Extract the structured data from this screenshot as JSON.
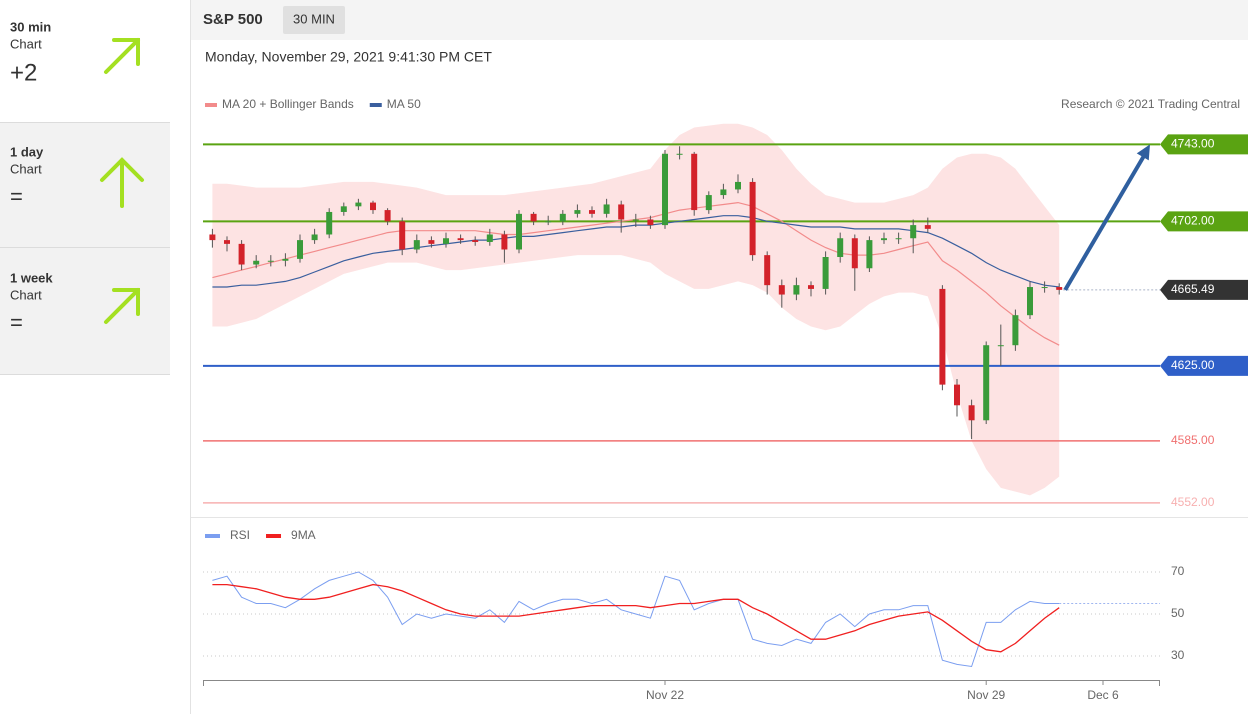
{
  "sidebar": [
    {
      "period": "30 min",
      "label": "Chart",
      "score": "+2"
    },
    {
      "period": "1 day",
      "label": "Chart",
      "score": "="
    },
    {
      "period": "1 week",
      "label": "Chart",
      "score": "="
    }
  ],
  "header": {
    "symbol": "S&P 500",
    "interval": "30 MIN",
    "datetime": "Monday, November 29, 2021 9:41:30 PM CET",
    "source": "Research © 2021 Trading Central"
  },
  "chart_data": [
    {
      "type": "candlestick",
      "ylim": [
        4545,
        4756
      ],
      "up_color": "#3a9b3a",
      "down_color": "#d3222a",
      "open": [
        4695,
        4692,
        4690,
        4679,
        4681,
        4681,
        4682,
        4692,
        4695,
        4707,
        4710,
        4712,
        4708,
        4702,
        4687,
        4692,
        4690,
        4693,
        4692,
        4691,
        4695,
        4687,
        4706,
        4702,
        4702,
        4706,
        4708,
        4706,
        4711,
        4703,
        4703,
        4700,
        4738,
        4738,
        4708,
        4716,
        4719,
        4723,
        4684,
        4668,
        4663,
        4668,
        4666,
        4683,
        4693,
        4677,
        4692,
        4693,
        4693,
        4700,
        4666,
        4615,
        4604,
        4596,
        4636,
        4636,
        4652,
        4667,
        4667
      ],
      "high": [
        4698,
        4694,
        4692,
        4684,
        4684,
        4685,
        4695,
        4698,
        4709,
        4712,
        4714,
        4713,
        4709,
        4704,
        4695,
        4694,
        4696,
        4695,
        4694,
        4698,
        4697,
        4708,
        4707,
        4705,
        4708,
        4711,
        4710,
        4714,
        4713,
        4706,
        4705,
        4740,
        4742,
        4739,
        4718,
        4722,
        4727,
        4725,
        4686,
        4671,
        4672,
        4670,
        4686,
        4696,
        4695,
        4694,
        4696,
        4696,
        4703,
        4704,
        4668,
        4618,
        4607,
        4638,
        4647,
        4655,
        4670,
        4670,
        4669
      ],
      "low": [
        4688,
        4686,
        4676,
        4677,
        4678,
        4678,
        4680,
        4690,
        4693,
        4705,
        4708,
        4706,
        4700,
        4684,
        4685,
        4688,
        4688,
        4690,
        4689,
        4689,
        4680,
        4685,
        4700,
        4700,
        4700,
        4704,
        4704,
        4704,
        4696,
        4699,
        4698,
        4698,
        4735,
        4705,
        4706,
        4714,
        4717,
        4681,
        4663,
        4656,
        4660,
        4662,
        4663,
        4680,
        4665,
        4675,
        4690,
        4690,
        4685,
        4696,
        4612,
        4598,
        4586,
        4594,
        4625,
        4633,
        4650,
        4664,
        4663
      ],
      "close": [
        4692,
        4690,
        4679,
        4681,
        4681,
        4682,
        4692,
        4695,
        4707,
        4710,
        4712,
        4708,
        4702,
        4687,
        4692,
        4690,
        4693,
        4692,
        4691,
        4695,
        4687,
        4706,
        4702,
        4702,
        4706,
        4708,
        4706,
        4711,
        4703,
        4703,
        4700,
        4738,
        4738,
        4708,
        4716,
        4719,
        4723,
        4684,
        4668,
        4663,
        4668,
        4666,
        4683,
        4693,
        4677,
        4692,
        4693,
        4693,
        4700,
        4698,
        4615,
        4604,
        4596,
        4636,
        4636,
        4652,
        4667,
        4667,
        4665.49
      ],
      "series": [
        {
          "name": "MA 20 + Bollinger Bands",
          "color": "#f28b8b",
          "band_color": "#fde3e3",
          "values": [
            4672,
            4674,
            4676,
            4678,
            4680,
            4682,
            4684,
            4686,
            4688,
            4690,
            4692,
            4694,
            4696,
            4697,
            4697,
            4697,
            4697,
            4697,
            4697,
            4696,
            4695,
            4695,
            4696,
            4697,
            4698,
            4699,
            4700,
            4701,
            4702,
            4703,
            4704,
            4706,
            4708,
            4709,
            4710,
            4711,
            4712,
            4710,
            4706,
            4702,
            4697,
            4692,
            4688,
            4685,
            4684,
            4684,
            4685,
            4687,
            4689,
            4691,
            4681,
            4676,
            4670,
            4664,
            4657,
            4651,
            4645,
            4640,
            4636
          ],
          "upper": [
            4722,
            4722,
            4721,
            4720,
            4720,
            4720,
            4720,
            4721,
            4722,
            4723,
            4723,
            4723,
            4722,
            4721,
            4720,
            4718,
            4716,
            4716,
            4716,
            4716,
            4716,
            4717,
            4718,
            4719,
            4720,
            4721,
            4722,
            4724,
            4726,
            4728,
            4730,
            4740,
            4748,
            4752,
            4753,
            4754,
            4754,
            4752,
            4748,
            4740,
            4730,
            4722,
            4716,
            4714,
            4712,
            4712,
            4712,
            4714,
            4716,
            4720,
            4730,
            4736,
            4738,
            4738,
            4736,
            4730,
            4720,
            4710,
            4700
          ],
          "lower": [
            4646,
            4646,
            4648,
            4650,
            4654,
            4658,
            4662,
            4666,
            4670,
            4674,
            4676,
            4678,
            4680,
            4680,
            4680,
            4678,
            4676,
            4676,
            4677,
            4678,
            4679,
            4680,
            4681,
            4682,
            4683,
            4684,
            4684,
            4684,
            4684,
            4682,
            4680,
            4674,
            4670,
            4666,
            4666,
            4668,
            4670,
            4668,
            4664,
            4656,
            4650,
            4646,
            4644,
            4646,
            4652,
            4658,
            4662,
            4664,
            4664,
            4662,
            4640,
            4610,
            4585,
            4570,
            4560,
            4558,
            4556,
            4560,
            4566
          ]
        },
        {
          "name": "MA 50",
          "color": "#3a5f9e",
          "values": [
            4667,
            4667,
            4668,
            4668,
            4669,
            4670,
            4672,
            4675,
            4678,
            4681,
            4683,
            4685,
            4686,
            4687,
            4688,
            4689,
            4690,
            4691,
            4692,
            4692,
            4693,
            4694,
            4694,
            4695,
            4696,
            4697,
            4698,
            4699,
            4699,
            4700,
            4700,
            4701,
            4702,
            4703,
            4704,
            4705,
            4705,
            4704,
            4702,
            4701,
            4700,
            4699,
            4699,
            4699,
            4698,
            4698,
            4698,
            4698,
            4697,
            4696,
            4693,
            4689,
            4685,
            4680,
            4676,
            4673,
            4670,
            4668,
            4667
          ]
        }
      ],
      "levels": [
        {
          "value": 4743,
          "label": "4743.00",
          "color": "#5aa312",
          "boxed": true
        },
        {
          "value": 4702,
          "label": "4702.00",
          "color": "#5aa312",
          "boxed": true
        },
        {
          "value": 4625,
          "label": "4625.00",
          "color": "#2f5fc8",
          "boxed": true
        },
        {
          "value": 4585,
          "label": "4585.00",
          "color": "#f07070",
          "boxed": false
        },
        {
          "value": 4552,
          "label": "4552.00",
          "color": "#f7b0b0",
          "boxed": false
        }
      ],
      "last": {
        "value": 4665.49,
        "label": "4665.49",
        "color": "#333333"
      }
    },
    {
      "type": "line",
      "ylim": [
        19.5,
        80.5
      ],
      "yticks": [
        70,
        50,
        30
      ],
      "grid": true,
      "categories": [
        null,
        null,
        null,
        null,
        null,
        null,
        null,
        null,
        null,
        null,
        null,
        null,
        null,
        null,
        null,
        null,
        null,
        null,
        null,
        null,
        null,
        null,
        null,
        null,
        null,
        null,
        null,
        null,
        null,
        null,
        null,
        "Nov 22",
        null,
        null,
        null,
        null,
        null,
        null,
        null,
        null,
        null,
        null,
        null,
        null,
        null,
        null,
        null,
        null,
        null,
        null,
        null,
        null,
        null,
        "Nov 29",
        null,
        null,
        null,
        null,
        null,
        null,
        null,
        "Dec 6"
      ],
      "series": [
        {
          "name": "RSI",
          "color": "#7b9ef0",
          "values": [
            66,
            68,
            58,
            55,
            55,
            53,
            57,
            62,
            66,
            68,
            70,
            66,
            58,
            45,
            50,
            48,
            50,
            49,
            48,
            52,
            46,
            56,
            52,
            55,
            57,
            57,
            55,
            57,
            52,
            50,
            48,
            68,
            66,
            52,
            55,
            57,
            57,
            38,
            36,
            35,
            38,
            36,
            46,
            50,
            44,
            50,
            52,
            52,
            54,
            54,
            28,
            26,
            25,
            46,
            46,
            52,
            56,
            55,
            55,
            null,
            null,
            null
          ]
        },
        {
          "name": "9MA",
          "color": "#f02020",
          "values": [
            64,
            64,
            63,
            62,
            60,
            58,
            57,
            57,
            58,
            60,
            62,
            64,
            63,
            61,
            58,
            55,
            52,
            50,
            49,
            49,
            49,
            49,
            50,
            51,
            52,
            53,
            54,
            54,
            54,
            54,
            53,
            54,
            55,
            55,
            56,
            57,
            57,
            53,
            50,
            46,
            42,
            38,
            38,
            40,
            42,
            45,
            47,
            49,
            50,
            51,
            47,
            42,
            37,
            33,
            32,
            36,
            42,
            48,
            53,
            null,
            null,
            null
          ]
        }
      ]
    }
  ]
}
